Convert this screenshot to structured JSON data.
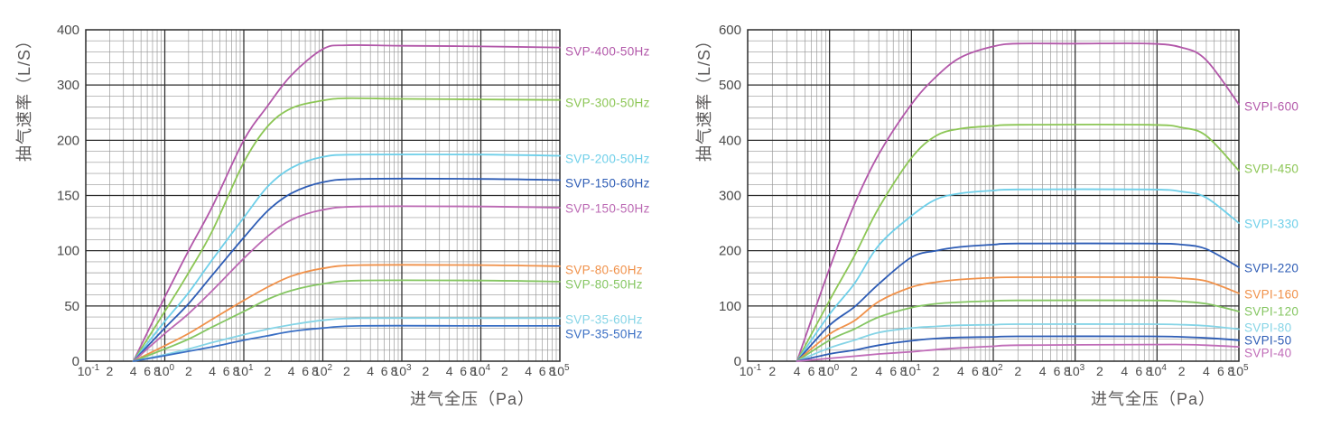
{
  "page": {
    "background": "#ffffff",
    "text_color": "#595757",
    "tick_label_color": "#4a4a4a",
    "grid_major_color": "#2b2b2b",
    "grid_minor_color": "#969696"
  },
  "chart_data": [
    {
      "type": "line",
      "id": "svp-50hz-60hz-curves",
      "x_axis_label": "进气全压（Pa）",
      "y_axis_label": "抽气速率（L/S）",
      "x_scale": "log",
      "x_range_exponents": [
        -1,
        5
      ],
      "x_decade_base": "10",
      "x_minor_tick_labels": [
        "2",
        "4",
        "6",
        "8"
      ],
      "y_ticks": [
        0,
        50,
        100,
        150,
        200,
        300,
        400
      ],
      "y_minor_divisions": 5,
      "grid": "major+minor",
      "legend_position": "right-of-curve-ends",
      "series": [
        {
          "name": "SVP-400-50Hz",
          "color": "#b257a9",
          "label_y": 57,
          "points": [
            [
              0.4,
              0
            ],
            [
              1,
              58
            ],
            [
              2,
              100
            ],
            [
              4,
              140
            ],
            [
              10,
              200
            ],
            [
              20,
              262
            ],
            [
              40,
              318
            ],
            [
              100,
              365
            ],
            [
              200,
              372
            ],
            [
              1000,
              371
            ],
            [
              10000,
              370
            ],
            [
              100000,
              368
            ]
          ]
        },
        {
          "name": "SVP-300-50Hz",
          "color": "#8cc655",
          "label_y": 114,
          "points": [
            [
              0.4,
              0
            ],
            [
              1,
              45
            ],
            [
              2,
              80
            ],
            [
              4,
              118
            ],
            [
              10,
              180
            ],
            [
              20,
              225
            ],
            [
              40,
              258
            ],
            [
              100,
              272
            ],
            [
              200,
              276
            ],
            [
              1000,
              275
            ],
            [
              10000,
              274
            ],
            [
              100000,
              273
            ]
          ]
        },
        {
          "name": "SVP-200-50Hz",
          "color": "#6ecfe9",
          "label_y": 176,
          "points": [
            [
              0.4,
              0
            ],
            [
              1,
              36
            ],
            [
              2,
              62
            ],
            [
              4,
              92
            ],
            [
              10,
              130
            ],
            [
              20,
              158
            ],
            [
              40,
              175
            ],
            [
              100,
              185
            ],
            [
              300,
              187
            ],
            [
              10000,
              187
            ],
            [
              100000,
              186
            ]
          ]
        },
        {
          "name": "SVP-150-60Hz",
          "color": "#2d5cb5",
          "label_y": 203,
          "points": [
            [
              0.4,
              0
            ],
            [
              1,
              30
            ],
            [
              2,
              52
            ],
            [
              4,
              78
            ],
            [
              10,
              112
            ],
            [
              20,
              136
            ],
            [
              40,
              152
            ],
            [
              100,
              162
            ],
            [
              300,
              165
            ],
            [
              10000,
              165
            ],
            [
              100000,
              164
            ]
          ]
        },
        {
          "name": "SVP-150-50Hz",
          "color": "#bb68b3",
          "label_y": 231,
          "points": [
            [
              0.4,
              0
            ],
            [
              1,
              25
            ],
            [
              2,
              43
            ],
            [
              4,
              64
            ],
            [
              10,
              93
            ],
            [
              20,
              113
            ],
            [
              40,
              128
            ],
            [
              100,
              137
            ],
            [
              300,
              140
            ],
            [
              10000,
              140
            ],
            [
              100000,
              139
            ]
          ]
        },
        {
          "name": "SVP-80-60Hz",
          "color": "#f0914a",
          "label_y": 299,
          "points": [
            [
              0.4,
              0
            ],
            [
              1,
              14
            ],
            [
              2,
              25
            ],
            [
              4,
              38
            ],
            [
              10,
              55
            ],
            [
              20,
              67
            ],
            [
              40,
              77
            ],
            [
              100,
              84
            ],
            [
              300,
              87
            ],
            [
              10000,
              87
            ],
            [
              100000,
              86
            ]
          ]
        },
        {
          "name": "SVP-80-50Hz",
          "color": "#85c662",
          "label_y": 315,
          "points": [
            [
              0.4,
              0
            ],
            [
              1,
              11
            ],
            [
              2,
              20
            ],
            [
              4,
              31
            ],
            [
              10,
              45
            ],
            [
              20,
              56
            ],
            [
              40,
              64
            ],
            [
              100,
              70
            ],
            [
              300,
              73
            ],
            [
              10000,
              73
            ],
            [
              100000,
              72
            ]
          ]
        },
        {
          "name": "SVP-35-60Hz",
          "color": "#85d4e6",
          "label_y": 354,
          "points": [
            [
              0.4,
              0
            ],
            [
              1,
              6
            ],
            [
              2,
              11
            ],
            [
              4,
              17
            ],
            [
              10,
              24
            ],
            [
              20,
              29
            ],
            [
              40,
              33
            ],
            [
              100,
              37
            ],
            [
              300,
              39
            ],
            [
              10000,
              39
            ],
            [
              100000,
              39
            ]
          ]
        },
        {
          "name": "SVP-35-50Hz",
          "color": "#3a6fc4",
          "label_y": 370,
          "points": [
            [
              0.4,
              0
            ],
            [
              1,
              5
            ],
            [
              2,
              9
            ],
            [
              4,
              13
            ],
            [
              10,
              19
            ],
            [
              20,
              23
            ],
            [
              40,
              27
            ],
            [
              100,
              30
            ],
            [
              300,
              32
            ],
            [
              10000,
              32
            ],
            [
              100000,
              32
            ]
          ]
        }
      ]
    },
    {
      "type": "line",
      "id": "svpi-curves",
      "x_axis_label": "进气全压（Pa）",
      "y_axis_label": "抽气速率（L/S）",
      "x_scale": "log",
      "x_range_exponents": [
        -1,
        5
      ],
      "x_decade_base": "10",
      "x_minor_tick_labels": [
        "2",
        "4",
        "6",
        "8"
      ],
      "y_ticks": [
        0,
        100,
        200,
        300,
        400,
        500,
        600
      ],
      "y_minor_divisions": 5,
      "grid": "major+minor",
      "legend_position": "right-of-curve-ends",
      "series": [
        {
          "name": "SVPI-600",
          "color": "#b257a9",
          "label_y": 118,
          "points": [
            [
              0.4,
              0
            ],
            [
              1,
              168
            ],
            [
              2,
              283
            ],
            [
              4,
              375
            ],
            [
              10,
              465
            ],
            [
              20,
              515
            ],
            [
              40,
              550
            ],
            [
              100,
              570
            ],
            [
              200,
              575
            ],
            [
              1000,
              575
            ],
            [
              8000,
              575
            ],
            [
              20000,
              568
            ],
            [
              40000,
              545
            ],
            [
              100000,
              465
            ]
          ]
        },
        {
          "name": "SVPI-450",
          "color": "#8cc655",
          "label_y": 187,
          "points": [
            [
              0.4,
              0
            ],
            [
              1,
              110
            ],
            [
              2,
              190
            ],
            [
              4,
              278
            ],
            [
              10,
              368
            ],
            [
              20,
              408
            ],
            [
              40,
              421
            ],
            [
              100,
              426
            ],
            [
              200,
              428
            ],
            [
              8000,
              428
            ],
            [
              20000,
              423
            ],
            [
              40000,
              408
            ],
            [
              100000,
              345
            ]
          ]
        },
        {
          "name": "SVPI-330",
          "color": "#6ecfe9",
          "label_y": 248,
          "points": [
            [
              0.4,
              0
            ],
            [
              1,
              85
            ],
            [
              2,
              140
            ],
            [
              4,
              210
            ],
            [
              10,
              263
            ],
            [
              20,
              293
            ],
            [
              40,
              304
            ],
            [
              100,
              309
            ],
            [
              200,
              311
            ],
            [
              8000,
              311
            ],
            [
              20000,
              307
            ],
            [
              40000,
              296
            ],
            [
              100000,
              250
            ]
          ]
        },
        {
          "name": "SVPI-220",
          "color": "#2d5cb5",
          "label_y": 297,
          "points": [
            [
              0.4,
              0
            ],
            [
              1,
              65
            ],
            [
              2,
              98
            ],
            [
              4,
              140
            ],
            [
              10,
              188
            ],
            [
              20,
              200
            ],
            [
              40,
              207
            ],
            [
              100,
              211
            ],
            [
              200,
              213
            ],
            [
              8000,
              213
            ],
            [
              20000,
              211
            ],
            [
              40000,
              203
            ],
            [
              100000,
              170
            ]
          ]
        },
        {
          "name": "SVPI-160",
          "color": "#f0914a",
          "label_y": 326,
          "points": [
            [
              0.4,
              0
            ],
            [
              1,
              49
            ],
            [
              2,
              73
            ],
            [
              4,
              108
            ],
            [
              10,
              134
            ],
            [
              20,
              143
            ],
            [
              40,
              148
            ],
            [
              100,
              151
            ],
            [
              200,
              152
            ],
            [
              8000,
              152
            ],
            [
              20000,
              150
            ],
            [
              40000,
              145
            ],
            [
              100000,
              123
            ]
          ]
        },
        {
          "name": "SVPI-120",
          "color": "#85c662",
          "label_y": 345,
          "points": [
            [
              0.4,
              0
            ],
            [
              1,
              38
            ],
            [
              2,
              58
            ],
            [
              4,
              80
            ],
            [
              10,
              97
            ],
            [
              20,
              104
            ],
            [
              40,
              107
            ],
            [
              100,
              109
            ],
            [
              200,
              110
            ],
            [
              8000,
              110
            ],
            [
              20000,
              108
            ],
            [
              40000,
              104
            ],
            [
              100000,
              90
            ]
          ]
        },
        {
          "name": "SVPI-80",
          "color": "#85d4e6",
          "label_y": 363,
          "points": [
            [
              0.4,
              0
            ],
            [
              1,
              24
            ],
            [
              2,
              38
            ],
            [
              4,
              52
            ],
            [
              10,
              60
            ],
            [
              20,
              63
            ],
            [
              40,
              65
            ],
            [
              100,
              66
            ],
            [
              200,
              67
            ],
            [
              8000,
              67
            ],
            [
              20000,
              66
            ],
            [
              40000,
              64
            ],
            [
              100000,
              58
            ]
          ]
        },
        {
          "name": "SVPI-50",
          "color": "#2d5cb5",
          "label_y": 377,
          "points": [
            [
              0.4,
              0
            ],
            [
              1,
              13
            ],
            [
              2,
              20
            ],
            [
              4,
              29
            ],
            [
              10,
              37
            ],
            [
              20,
              41
            ],
            [
              40,
              43
            ],
            [
              100,
              44
            ],
            [
              200,
              45
            ],
            [
              8000,
              45
            ],
            [
              20000,
              44
            ],
            [
              40000,
              42
            ],
            [
              100000,
              38
            ]
          ]
        },
        {
          "name": "SVPI-40",
          "color": "#c06cb8",
          "label_y": 391,
          "points": [
            [
              0.4,
              0
            ],
            [
              1,
              5
            ],
            [
              2,
              9
            ],
            [
              4,
              13
            ],
            [
              10,
              17
            ],
            [
              20,
              21
            ],
            [
              40,
              24
            ],
            [
              100,
              27
            ],
            [
              200,
              29
            ],
            [
              8000,
              30
            ],
            [
              20000,
              30
            ],
            [
              40000,
              29
            ],
            [
              100000,
              26
            ]
          ]
        }
      ]
    }
  ]
}
